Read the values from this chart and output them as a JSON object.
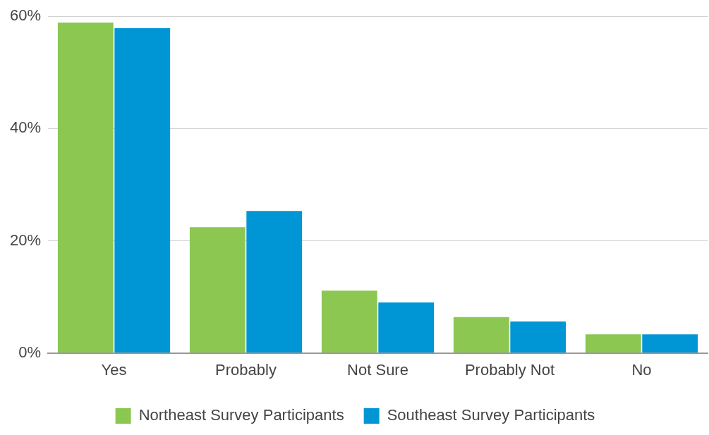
{
  "chart_data": {
    "type": "bar",
    "categories": [
      "Yes",
      "Probably",
      "Not Sure",
      "Probably Not",
      "No"
    ],
    "series": [
      {
        "name": "Northeast Survey Participants",
        "color": "#8bc751",
        "values": [
          58.9,
          22.4,
          11.1,
          6.4,
          3.3
        ]
      },
      {
        "name": "Southeast Survey Participants",
        "color": "#0096d6",
        "values": [
          57.9,
          25.3,
          9.0,
          5.6,
          3.3
        ]
      }
    ],
    "ylim": [
      0,
      60
    ],
    "yticks": [
      {
        "value": 0,
        "label": "0%"
      },
      {
        "value": 20,
        "label": "20%"
      },
      {
        "value": 40,
        "label": "40%"
      },
      {
        "value": 60,
        "label": "60%"
      }
    ],
    "grid": "y",
    "legend": "bottom"
  }
}
